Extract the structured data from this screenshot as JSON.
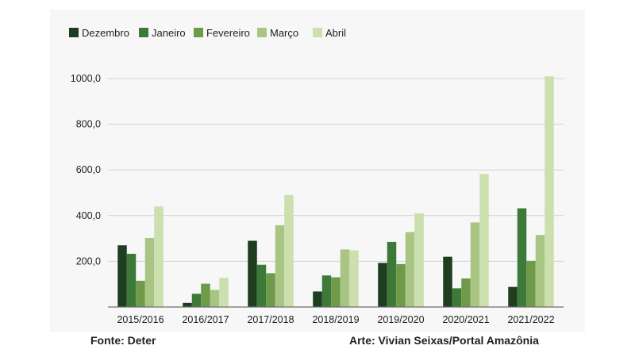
{
  "chart_data": {
    "type": "bar",
    "title": "",
    "xlabel": "",
    "ylabel": "",
    "categories": [
      "2015/2016",
      "2016/2017",
      "2017/2018",
      "2018/2019",
      "2019/2020",
      "2020/2021",
      "2021/2022"
    ],
    "series": [
      {
        "name": "Dezembro",
        "color": "#1f3d1f",
        "values": [
          270,
          18,
          290,
          68,
          193,
          220,
          88
        ]
      },
      {
        "name": "Janeiro",
        "color": "#3d7a3a",
        "values": [
          233,
          58,
          185,
          138,
          285,
          82,
          432
        ]
      },
      {
        "name": "Fevereiro",
        "color": "#6e9a4a",
        "values": [
          115,
          102,
          148,
          130,
          188,
          125,
          202
        ]
      },
      {
        "name": "Março",
        "color": "#a8c584",
        "values": [
          302,
          75,
          358,
          252,
          328,
          370,
          315
        ]
      },
      {
        "name": "Abril",
        "color": "#ccdfae",
        "values": [
          440,
          128,
          490,
          248,
          410,
          582,
          1010
        ]
      }
    ],
    "yticks": [
      "1000,0",
      "800,0",
      "600,0",
      "400,0",
      "200,0"
    ],
    "ytick_values": [
      1000,
      800,
      600,
      400,
      200
    ],
    "ylim": [
      0,
      1000
    ],
    "grid": true,
    "legend_position": "top-left"
  },
  "footer": {
    "source": "Fonte: Deter",
    "art": "Arte: Vivian Seixas/Portal Amazônia"
  }
}
